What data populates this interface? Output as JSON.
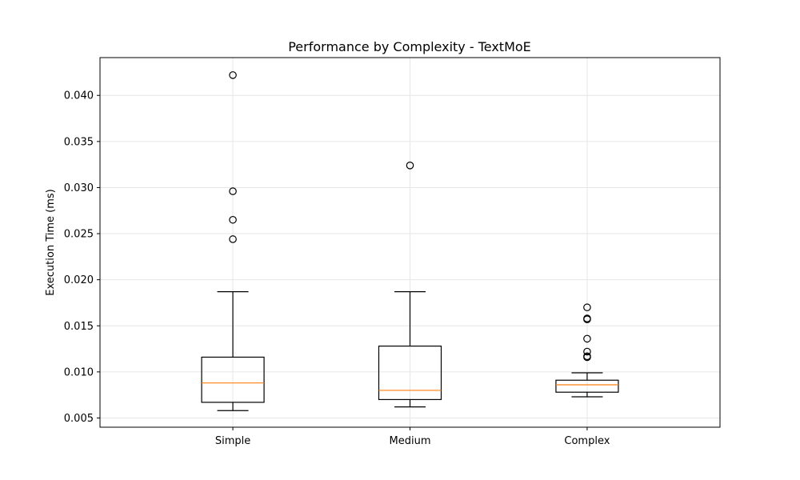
{
  "chart_data": {
    "type": "box",
    "title": "Performance by Complexity - TextMoE",
    "xlabel": "",
    "ylabel": "Execution Time (ms)",
    "ylim": [
      0.004,
      0.0441
    ],
    "yticks": [
      "0.005",
      "0.010",
      "0.015",
      "0.020",
      "0.025",
      "0.030",
      "0.035",
      "0.040"
    ],
    "grid": true,
    "categories": [
      "Simple",
      "Medium",
      "Complex"
    ],
    "boxes": [
      {
        "category": "Simple",
        "whisker_low": 0.0058,
        "q1": 0.0067,
        "median": 0.0088,
        "q3": 0.0116,
        "whisker_high": 0.0187,
        "outliers": [
          0.0422,
          0.0296,
          0.0265,
          0.0244
        ]
      },
      {
        "category": "Medium",
        "whisker_low": 0.0062,
        "q1": 0.007,
        "median": 0.008,
        "q3": 0.0128,
        "whisker_high": 0.0187,
        "outliers": [
          0.0324
        ]
      },
      {
        "category": "Complex",
        "whisker_low": 0.0073,
        "q1": 0.0078,
        "median": 0.0086,
        "q3": 0.0091,
        "whisker_high": 0.0099,
        "outliers": [
          0.017,
          0.0158,
          0.0157,
          0.0136,
          0.0122,
          0.0117,
          0.0116
        ]
      }
    ],
    "colors": {
      "box": "#000000",
      "median": "#ff7f0e",
      "grid": "#e6e6e6"
    }
  }
}
